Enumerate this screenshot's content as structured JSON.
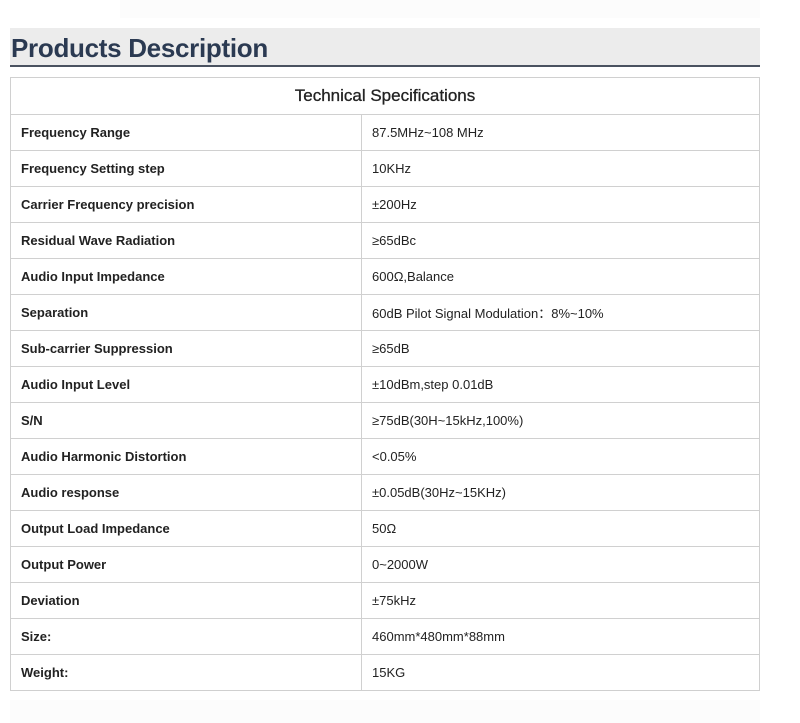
{
  "header": {
    "title": "Products Description"
  },
  "table": {
    "title": "Technical Specifications",
    "rows": [
      {
        "k": "Frequency Range",
        "v": "87.5MHz~108 MHz"
      },
      {
        "k": "Frequency Setting step",
        "v": "10KHz"
      },
      {
        "k": "Carrier Frequency precision",
        "v": "±200Hz"
      },
      {
        "k": "Residual Wave Radiation",
        "v": "≥65dBc"
      },
      {
        "k": "Audio Input Impedance",
        "v": "600Ω,Balance"
      },
      {
        "k": "Separation",
        "v": "60dB Pilot Signal Modulation：8%~10%"
      },
      {
        "k": "Sub-carrier Suppression",
        "v": "≥65dB"
      },
      {
        "k": "Audio Input Level",
        "v": "±10dBm,step 0.01dB"
      },
      {
        "k": "S/N",
        "v": "≥75dB(30H~15kHz,100%)"
      },
      {
        "k": "Audio Harmonic Distortion",
        "v": "<0.05%"
      },
      {
        "k": "Audio response",
        "v": "±0.05dB(30Hz~15KHz)"
      },
      {
        "k": "Output Load Impedance",
        "v": "50Ω"
      },
      {
        "k": "Output Power",
        "v": "0~2000W"
      },
      {
        "k": "Deviation",
        "v": "±75kHz"
      },
      {
        "k": "Size:",
        "v": "460mm*480mm*88mm"
      },
      {
        "k": "Weight:",
        "v": "15KG"
      }
    ]
  }
}
